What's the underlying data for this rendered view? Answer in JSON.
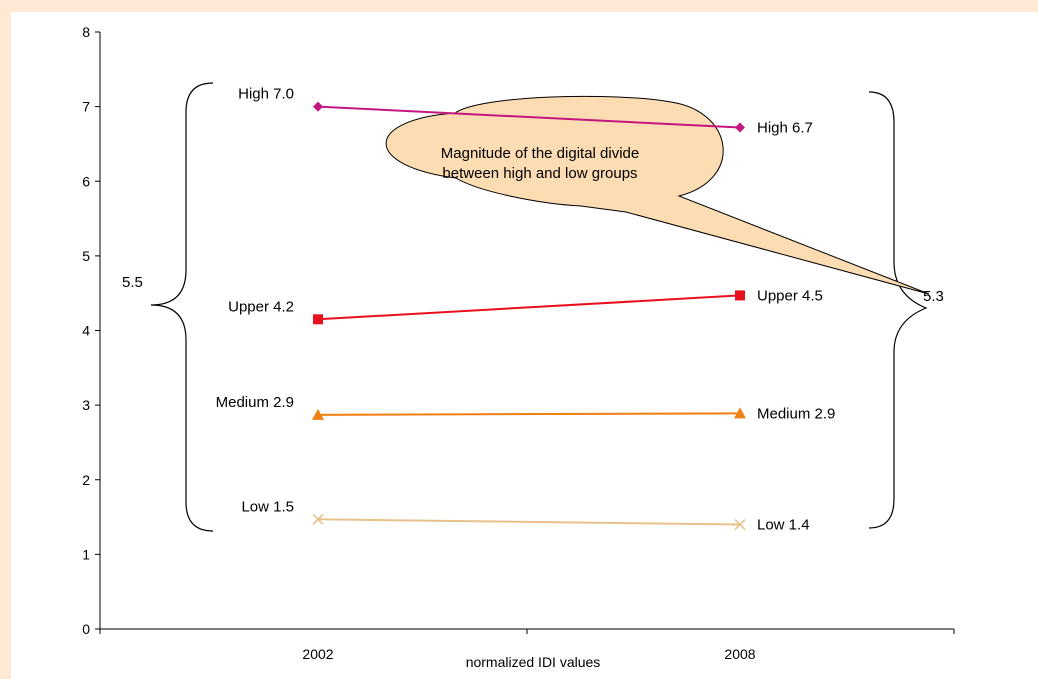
{
  "chart_data": {
    "type": "line",
    "xlabel": "normalized IDI values",
    "ylabel": "",
    "categories": [
      "2002",
      "2008"
    ],
    "ylim": [
      0,
      8
    ],
    "yticks": [
      "0",
      "1",
      "2",
      "3",
      "4",
      "5",
      "6",
      "7",
      "8"
    ],
    "grid": false,
    "series": [
      {
        "name": "High",
        "values": [
          7.0,
          6.72
        ],
        "color": "#c2177e",
        "marker": "diamond",
        "labels": [
          "High  7.0",
          "High  6.7"
        ]
      },
      {
        "name": "Upper",
        "values": [
          4.15,
          4.47
        ],
        "color": "#e8101c",
        "marker": "square",
        "labels": [
          "Upper  4.2",
          "Upper  4.5"
        ]
      },
      {
        "name": "Medium",
        "values": [
          2.87,
          2.89
        ],
        "color": "#f07f12",
        "marker": "triangle",
        "labels": [
          "Medium  2.9",
          "Medium  2.9"
        ]
      },
      {
        "name": "Low",
        "values": [
          1.47,
          1.4
        ],
        "color": "#e8c18a",
        "marker": "x",
        "labels": [
          "Low  1.5",
          "Low  1.4"
        ]
      }
    ],
    "annotations": {
      "gap_2002": "5.5",
      "gap_2008": "5.3",
      "callout": [
        "Magnitude of the digital divide",
        "between high and low groups"
      ],
      "callout_fill": "#fcdcb2"
    }
  }
}
